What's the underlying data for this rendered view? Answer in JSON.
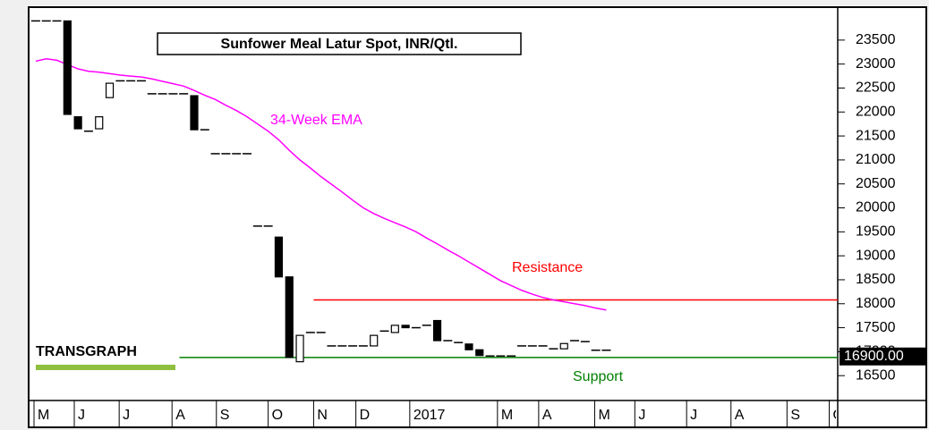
{
  "chart_data": {
    "type": "candlestick",
    "title": "Sunfower Meal Latur Spot, INR/Qtl.",
    "logo": "TRANSGRAPH",
    "open": [
      23900,
      23900,
      23900,
      23900,
      21900,
      21600,
      21650,
      22300,
      22650,
      22650,
      22650,
      22380,
      22380,
      22380,
      22380,
      22340,
      21630,
      21130,
      21130,
      21130,
      21130,
      19620,
      19620,
      19390,
      18560,
      16790,
      17400,
      17400,
      17120,
      17120,
      17120,
      17120,
      17120,
      17430,
      17400,
      17550,
      17500,
      17550,
      17650,
      17230,
      17190,
      17160,
      17040,
      16910,
      16910,
      16910,
      17120,
      17120,
      17120,
      17060,
      17060,
      17230,
      17210,
      17030,
      17030
    ],
    "close": [
      23900,
      23900,
      23900,
      21950,
      21650,
      21600,
      21900,
      22600,
      22650,
      22650,
      22650,
      22380,
      22380,
      22380,
      22380,
      21630,
      21630,
      21130,
      21130,
      21130,
      21130,
      19620,
      19620,
      18560,
      16880,
      17340,
      17400,
      17400,
      17120,
      17120,
      17120,
      17120,
      17340,
      17430,
      17550,
      17500,
      17500,
      17550,
      17230,
      17230,
      17190,
      17040,
      16920,
      16910,
      16910,
      16910,
      17120,
      17120,
      17120,
      17060,
      17170,
      17230,
      17210,
      17030,
      17030
    ],
    "series": [
      {
        "name": "34-Week EMA",
        "color": "#ff00ff",
        "values": [
          23060,
          23110,
          23080,
          22990,
          22900,
          22850,
          22830,
          22800,
          22770,
          22750,
          22730,
          22690,
          22640,
          22590,
          22540,
          22450,
          22350,
          22260,
          22140,
          22030,
          21900,
          21750,
          21600,
          21420,
          21200,
          21000,
          20830,
          20650,
          20490,
          20330,
          20160,
          20000,
          19880,
          19780,
          19690,
          19600,
          19500,
          19370,
          19250,
          19120,
          19000,
          18870,
          18740,
          18610,
          18480,
          18380,
          18280,
          18200,
          18130,
          18080,
          18040,
          18000,
          17960,
          17910,
          17870
        ]
      }
    ],
    "lines": [
      {
        "name": "Resistance",
        "value": 18080,
        "from": 26.3,
        "color": "#ff0000"
      },
      {
        "name": "Support",
        "value": 16880,
        "from": 13.6,
        "color": "#008000"
      }
    ],
    "last_price": {
      "value": 16900,
      "label": "16900.00"
    },
    "xlim": [
      -0.5,
      75.9
    ],
    "xticks": [
      {
        "value": -0.16,
        "label": "M"
      },
      {
        "value": 3.65,
        "label": "J"
      },
      {
        "value": 7.9,
        "label": "J"
      },
      {
        "value": 12.9,
        "label": "A"
      },
      {
        "value": 17.1,
        "label": "S"
      },
      {
        "value": 22.0,
        "label": "O"
      },
      {
        "value": 26.3,
        "label": "N"
      },
      {
        "value": 30.3,
        "label": "D"
      },
      {
        "value": 35.4,
        "label": "2017"
      },
      {
        "value": 43.7,
        "label": "M"
      },
      {
        "value": 47.6,
        "label": "A"
      },
      {
        "value": 52.9,
        "label": "M"
      },
      {
        "value": 56.7,
        "label": "J"
      },
      {
        "value": 61.6,
        "label": "J"
      },
      {
        "value": 65.8,
        "label": "A"
      },
      {
        "value": 71.1,
        "label": "S"
      },
      {
        "value": 75.1,
        "label": "O"
      }
    ],
    "ylim": [
      16000,
      24150
    ],
    "yticks": [
      16500,
      17000,
      17500,
      18000,
      18500,
      19000,
      19500,
      20000,
      20500,
      21000,
      21500,
      22000,
      22500,
      23000,
      23500
    ]
  }
}
